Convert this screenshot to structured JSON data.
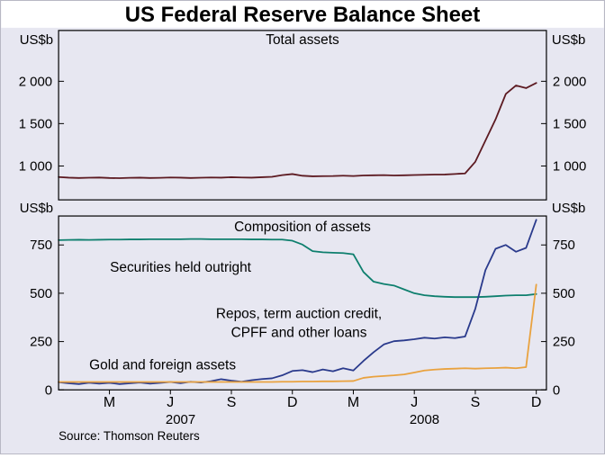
{
  "title": "US Federal Reserve Balance Sheet",
  "source": "Source: Thomson Reuters",
  "axis_unit_label": "US$b",
  "series_labels": {
    "securities": "Securities held outright",
    "repos_line1": "Repos, term auction credit,",
    "repos_line2": "CPFF and other loans",
    "gold": "Gold and foreign assets"
  },
  "x_axis": {
    "domain": [
      0,
      24
    ],
    "tick_labels": [
      "M",
      "J",
      "S",
      "D",
      "M",
      "J",
      "S",
      "D"
    ],
    "tick_positions": [
      2.5,
      5.5,
      8.5,
      11.5,
      14.5,
      17.5,
      20.5,
      23.5
    ],
    "year_labels": [
      {
        "label": "2007",
        "pos": 6
      },
      {
        "label": "2008",
        "pos": 18
      }
    ]
  },
  "chart_data": [
    {
      "type": "line",
      "panel": "top",
      "title": "Total assets",
      "ylabel": "US$b",
      "ylim": [
        600,
        2600
      ],
      "yticks": [
        1000,
        1500,
        2000
      ],
      "ytick_labels": [
        "1 000",
        "1 500",
        "2 000"
      ],
      "x_unit": "months-from-Jan-2007",
      "x_start": 0,
      "x_step": 0.5,
      "series": [
        {
          "id": "total-assets",
          "name": "Total assets",
          "color": "#5c1a21",
          "values": [
            870,
            862,
            858,
            861,
            864,
            858,
            856,
            860,
            862,
            858,
            860,
            865,
            862,
            858,
            861,
            865,
            862,
            868,
            865,
            862,
            868,
            872,
            892,
            905,
            885,
            878,
            880,
            882,
            886,
            882,
            888,
            890,
            892,
            888,
            890,
            893,
            896,
            898,
            900,
            906,
            912,
            1050,
            1300,
            1550,
            1850,
            1950,
            1920,
            1980
          ]
        }
      ]
    },
    {
      "type": "line",
      "panel": "bottom",
      "title": "Composition of assets",
      "ylabel": "US$b",
      "ylim": [
        0,
        900
      ],
      "yticks": [
        0,
        250,
        500,
        750
      ],
      "ytick_labels": [
        "0",
        "250",
        "500",
        "750"
      ],
      "x_unit": "months-from-Jan-2007",
      "x_start": 0,
      "x_step": 0.5,
      "series": [
        {
          "id": "securities-held-outright",
          "name": "Securities held outright",
          "color": "#0e7f6e",
          "values": [
            775,
            776,
            777,
            776,
            777,
            778,
            778,
            779,
            779,
            780,
            780,
            780,
            780,
            781,
            781,
            780,
            780,
            780,
            780,
            779,
            779,
            778,
            778,
            772,
            752,
            718,
            712,
            710,
            708,
            702,
            610,
            560,
            548,
            540,
            520,
            500,
            490,
            485,
            482,
            480,
            480,
            480,
            482,
            485,
            488,
            490,
            490,
            496
          ]
        },
        {
          "id": "repos-term-auction-cpff",
          "name": "Repos, term auction credit, CPFF and other loans",
          "color": "#2a3a8c",
          "values": [
            40,
            34,
            30,
            37,
            32,
            36,
            30,
            34,
            38,
            32,
            36,
            41,
            35,
            42,
            38,
            45,
            55,
            48,
            42,
            50,
            56,
            60,
            75,
            98,
            102,
            92,
            106,
            96,
            112,
            100,
            150,
            195,
            235,
            252,
            256,
            262,
            270,
            266,
            272,
            268,
            276,
            420,
            620,
            730,
            750,
            715,
            735,
            880
          ]
        },
        {
          "id": "gold-foreign-assets",
          "name": "Gold and foreign assets",
          "color": "#e9a23f",
          "values": [
            41,
            41,
            41,
            41,
            41,
            41,
            41,
            41,
            41,
            41,
            41,
            41,
            41,
            41,
            41,
            41,
            41,
            41,
            41,
            41,
            41,
            41,
            42,
            42,
            43,
            43,
            44,
            44,
            45,
            46,
            62,
            68,
            72,
            75,
            80,
            90,
            100,
            105,
            108,
            110,
            112,
            110,
            112,
            113,
            115,
            112,
            118,
            545
          ]
        }
      ]
    }
  ]
}
